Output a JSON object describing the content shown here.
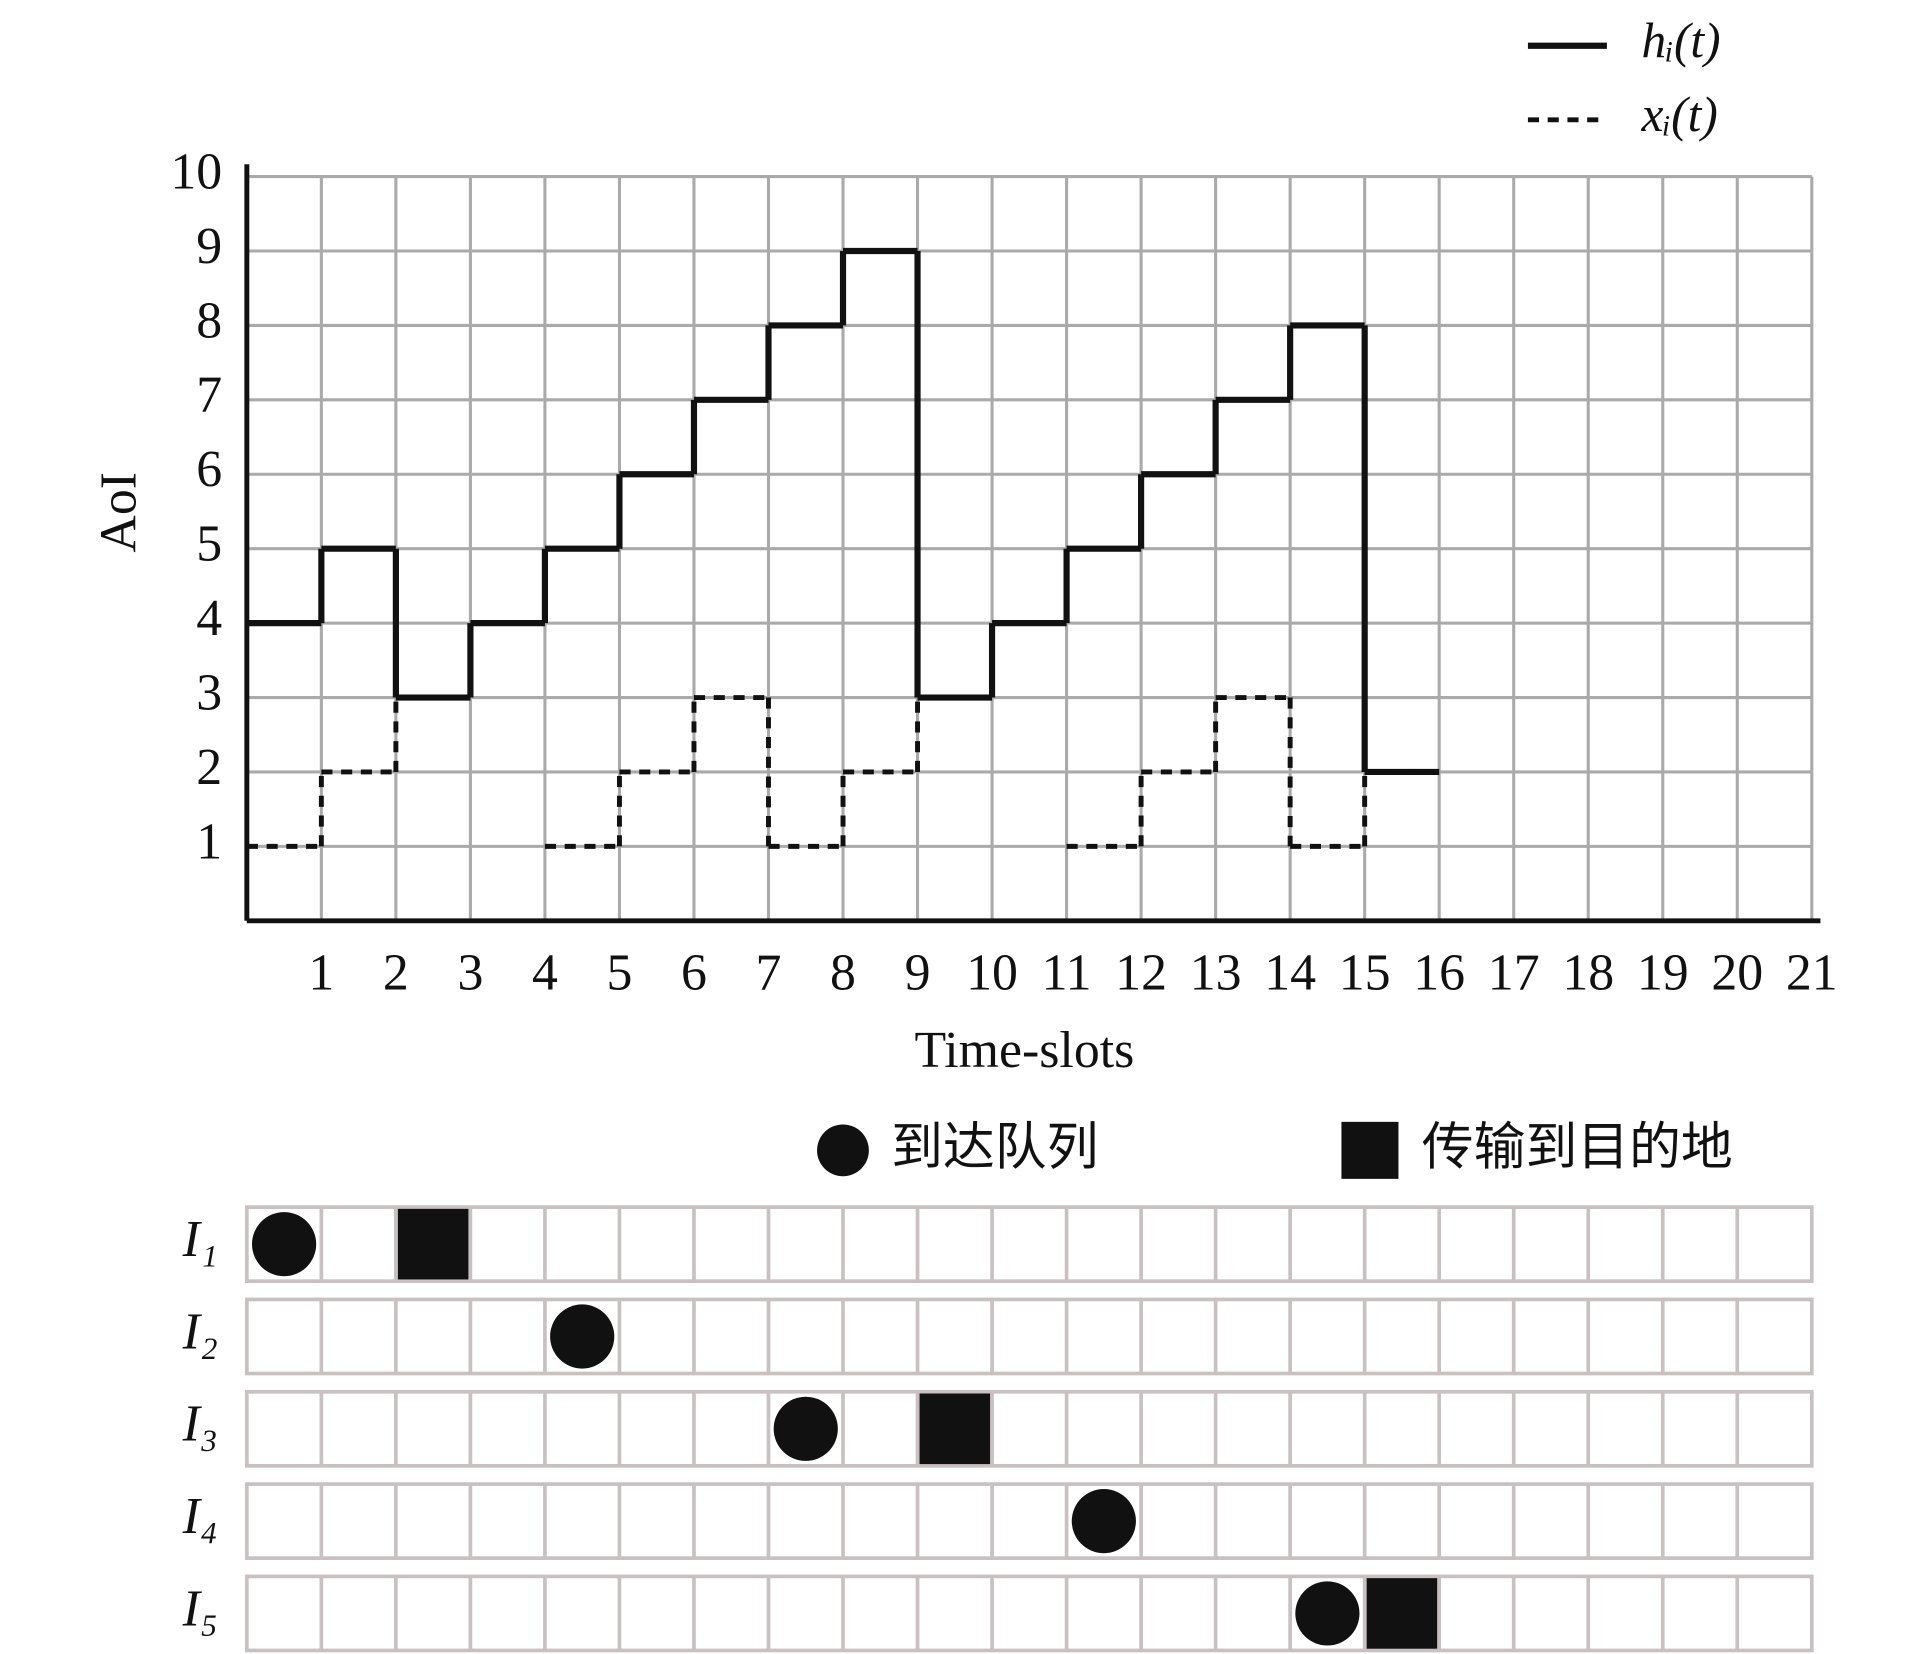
{
  "chart_data": [
    {
      "type": "step",
      "ylabel": "AoI",
      "xlabel": "Time-slots",
      "xlim": [
        0,
        21
      ],
      "xticks": [
        1,
        2,
        3,
        4,
        5,
        6,
        7,
        8,
        9,
        10,
        11,
        12,
        13,
        14,
        15,
        16,
        17,
        18,
        19,
        20,
        21
      ],
      "ylim": [
        0,
        10
      ],
      "yticks": [
        1,
        2,
        3,
        4,
        5,
        6,
        7,
        8,
        9,
        10
      ],
      "grid": true,
      "legend": "top-right",
      "series": [
        {
          "name": "hᵢ(t)",
          "color": "#111111",
          "linestyle": "solid",
          "x": [
            0,
            1,
            2,
            3,
            4,
            5,
            6,
            7,
            8,
            9,
            10,
            11,
            12,
            13,
            14,
            15
          ],
          "values": [
            4,
            5,
            3,
            4,
            5,
            6,
            7,
            8,
            9,
            3,
            4,
            5,
            6,
            7,
            8,
            2
          ]
        },
        {
          "name": "xᵢ(t)",
          "color": "#111111",
          "linestyle": "dashed",
          "x": [
            0,
            1,
            2,
            3,
            4,
            5,
            6,
            7,
            8,
            9,
            10,
            11,
            12,
            13,
            14,
            15
          ],
          "values": [
            1,
            2,
            3,
            null,
            1,
            2,
            3,
            1,
            2,
            3,
            null,
            1,
            2,
            3,
            1,
            2
          ]
        }
      ]
    },
    {
      "type": "event-grid",
      "xlim": [
        0,
        21
      ],
      "rows": [
        "I₁",
        "I₂",
        "I₃",
        "I₄",
        "I₅"
      ],
      "series": [
        {
          "name": "到达队列",
          "marker": "circle",
          "color": "#111111",
          "x": [
            0,
            4,
            7,
            11,
            14
          ],
          "row": [
            0,
            1,
            2,
            3,
            4
          ]
        },
        {
          "name": "传输到目的地",
          "marker": "square",
          "color": "#111111",
          "x": [
            2,
            9,
            15
          ],
          "row": [
            0,
            2,
            4
          ]
        }
      ]
    }
  ]
}
